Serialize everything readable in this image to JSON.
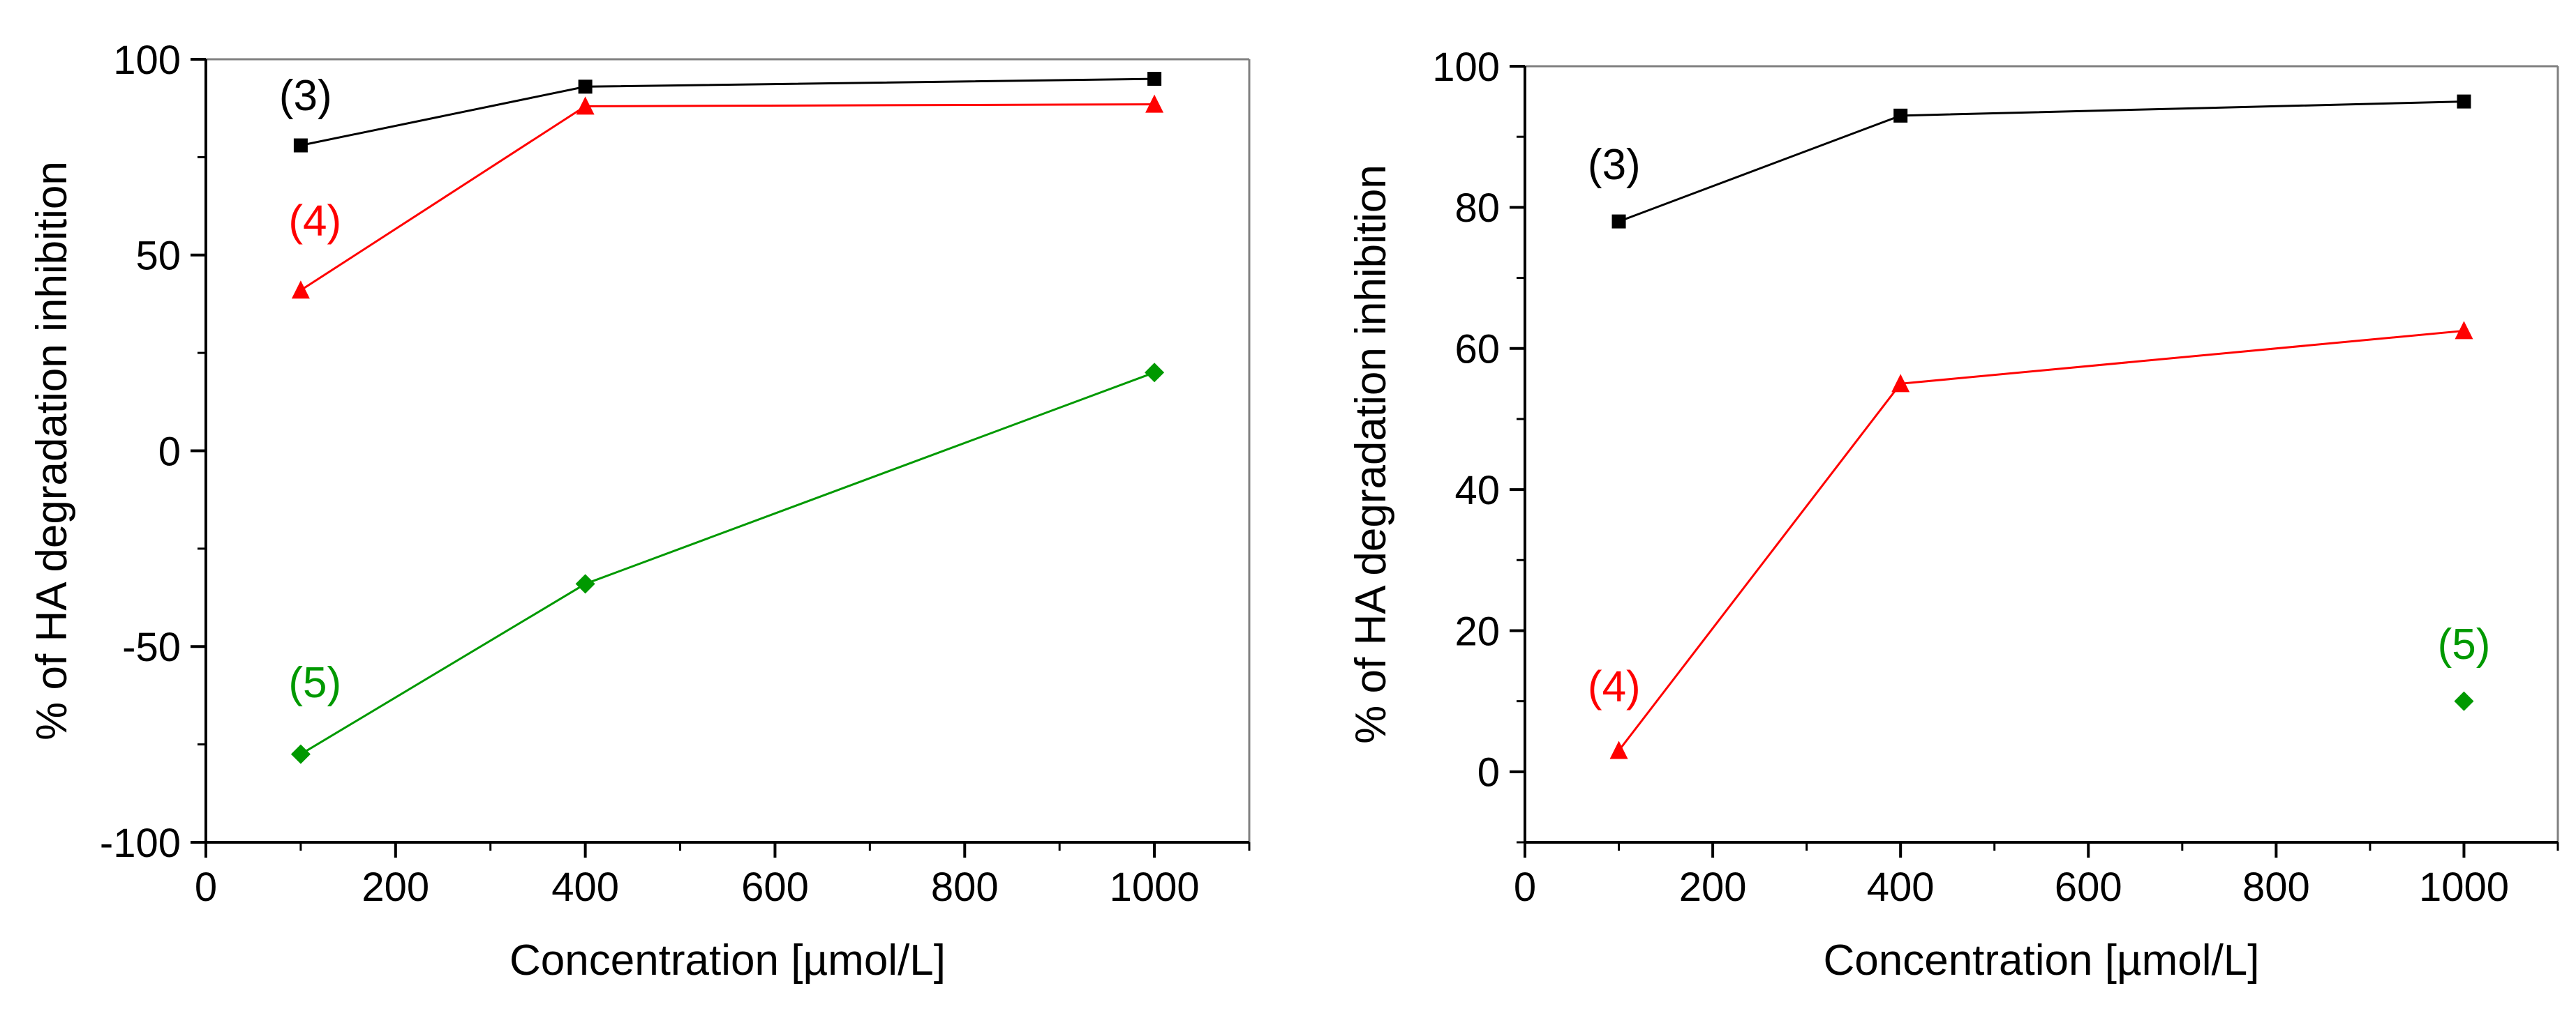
{
  "chart_data": [
    {
      "type": "line",
      "title": "",
      "xlabel": "Concentration [µmol/L]",
      "ylabel": "% of HA degradation inhibition",
      "xlim": [
        0,
        1100
      ],
      "ylim": [
        -100,
        100
      ],
      "xticks": [
        0,
        200,
        400,
        600,
        800,
        1000
      ],
      "xtick_labels": [
        "0",
        "200",
        "400",
        "600",
        "800",
        "1000"
      ],
      "yticks": [
        -100,
        -50,
        0,
        50,
        100
      ],
      "ytick_labels": [
        "-100",
        "-50",
        "0",
        "50",
        "100"
      ],
      "grid": false,
      "series": [
        {
          "name": "(3)",
          "color": "#000000",
          "marker": "square",
          "x": [
            100,
            400,
            1000
          ],
          "y": [
            78,
            93,
            95
          ],
          "label_at": [
            105,
            87
          ]
        },
        {
          "name": "(4)",
          "color": "#ff0000",
          "marker": "triangle",
          "x": [
            100,
            400,
            1000
          ],
          "y": [
            41,
            88,
            88.5
          ],
          "label_at": [
            115,
            55
          ]
        },
        {
          "name": "(5)",
          "color": "#009900",
          "marker": "diamond",
          "x": [
            100,
            400,
            1000
          ],
          "y": [
            -77.5,
            -34,
            20
          ],
          "label_at": [
            115,
            -63
          ]
        }
      ]
    },
    {
      "type": "line",
      "title": "",
      "xlabel": "Concentration [µmol/L]",
      "ylabel": "% of HA degradation inhibition",
      "xlim": [
        0,
        1100
      ],
      "ylim": [
        -10,
        100
      ],
      "xticks": [
        0,
        200,
        400,
        600,
        800,
        1000
      ],
      "xtick_labels": [
        "0",
        "200",
        "400",
        "600",
        "800",
        "1000"
      ],
      "yticks": [
        0,
        20,
        40,
        60,
        80,
        100
      ],
      "ytick_labels": [
        "0",
        "20",
        "40",
        "60",
        "80",
        "100"
      ],
      "grid": false,
      "series": [
        {
          "name": "(3)",
          "color": "#000000",
          "marker": "square",
          "x": [
            100,
            400,
            1000
          ],
          "y": [
            78,
            93,
            95
          ],
          "label_at": [
            95,
            84
          ]
        },
        {
          "name": "(4)",
          "color": "#ff0000",
          "marker": "triangle",
          "x": [
            100,
            400,
            1000
          ],
          "y": [
            3,
            55,
            62.5
          ],
          "label_at": [
            95,
            10
          ]
        },
        {
          "name": "(5)",
          "color": "#009900",
          "marker": "diamond",
          "x": [
            1000
          ],
          "y": [
            10
          ],
          "label_at": [
            1000,
            16
          ]
        }
      ]
    }
  ]
}
